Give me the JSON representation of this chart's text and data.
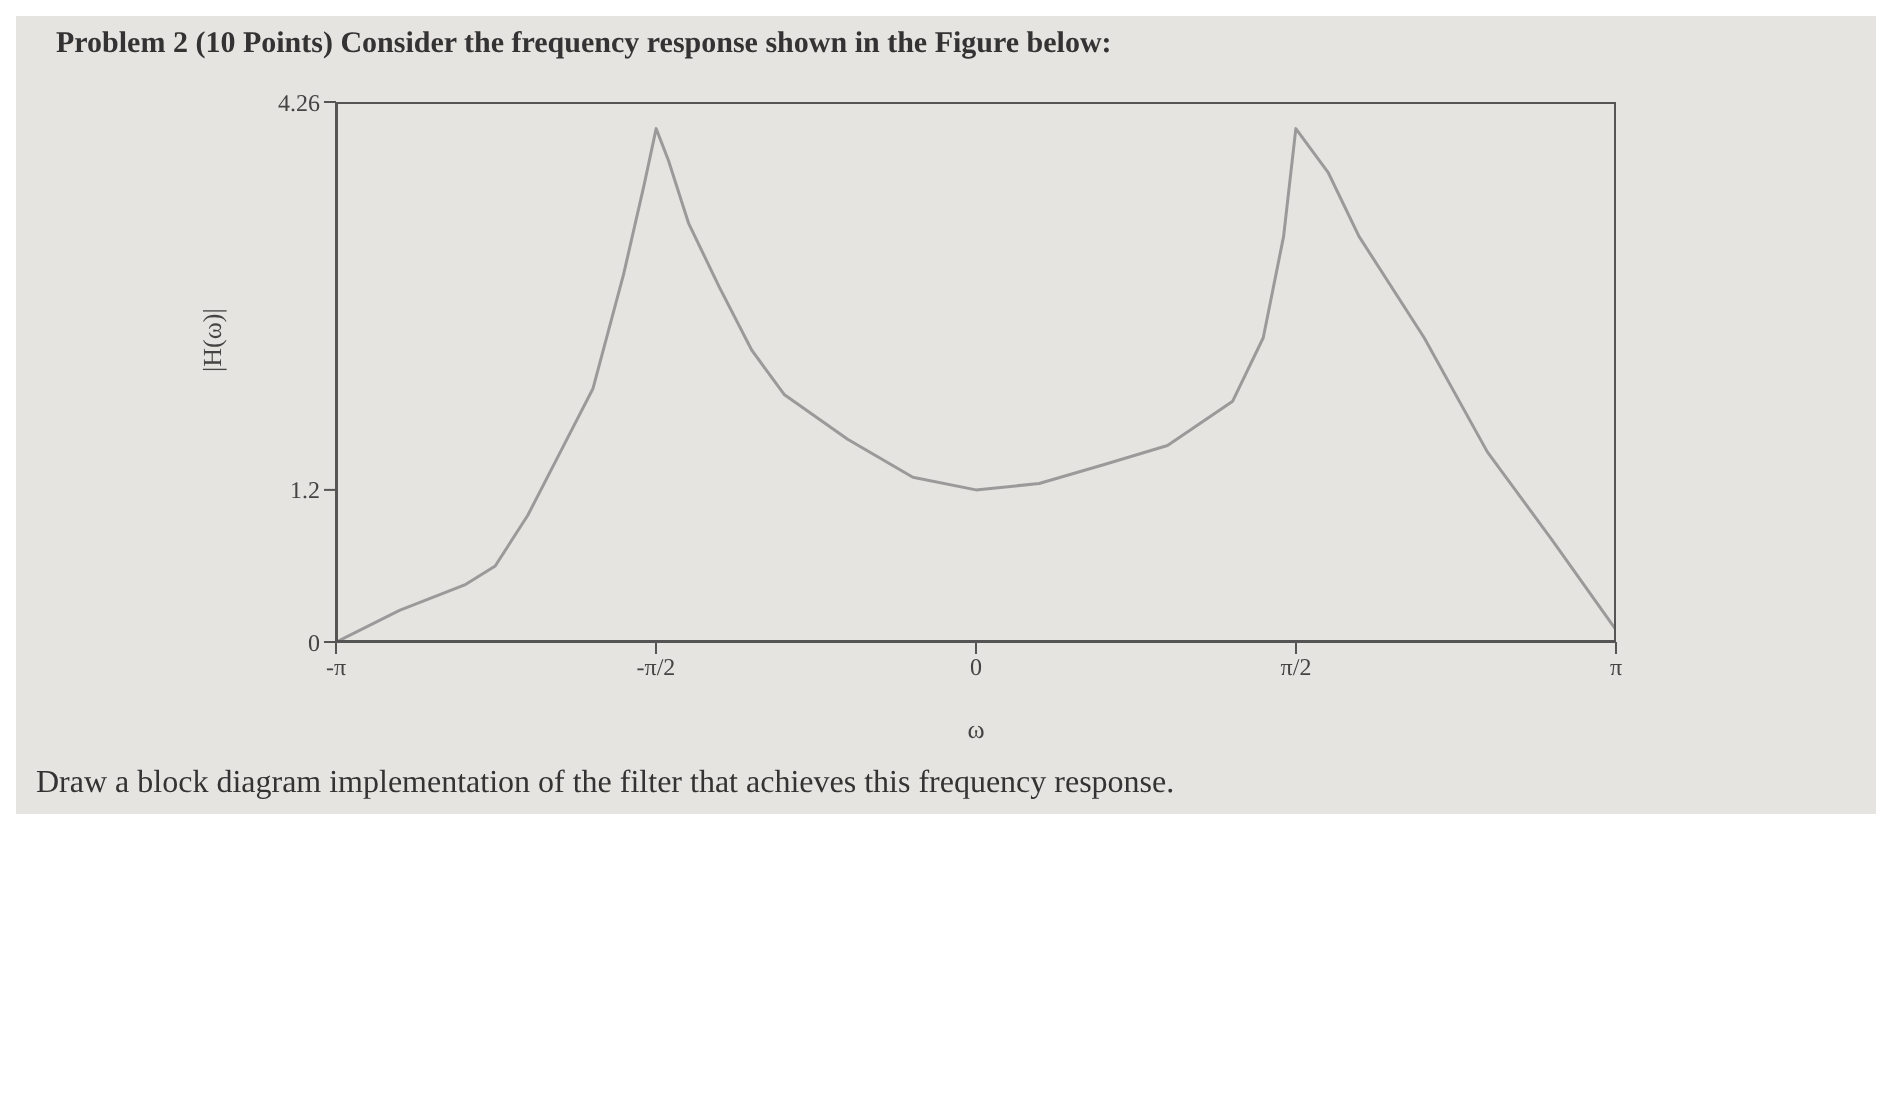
{
  "chart_data": {
    "type": "line",
    "title": "Problem 2 (10 Points) Consider the frequency response shown in the Figure below:",
    "xlabel": "ω",
    "ylabel": "|H(ω)|",
    "annotations": [
      "Draw a block diagram implementation of the filter that achieves this frequency response."
    ],
    "x": [
      -3.14,
      -2.83,
      -2.51,
      -2.36,
      -2.2,
      -2.04,
      -1.88,
      -1.73,
      -1.63,
      -1.57,
      -1.51,
      -1.41,
      -1.26,
      -1.1,
      -0.94,
      -0.63,
      -0.31,
      0,
      0.31,
      0.63,
      0.94,
      1.26,
      1.41,
      1.51,
      1.57,
      1.73,
      1.88,
      2.2,
      2.51,
      2.83,
      3.14
    ],
    "series": [
      {
        "color": "#9a9a9a",
        "values": [
          0,
          0.25,
          0.45,
          0.6,
          1.0,
          1.5,
          2.0,
          2.9,
          3.6,
          4.05,
          3.8,
          3.3,
          2.8,
          2.3,
          1.95,
          1.6,
          1.3,
          1.2,
          1.25,
          1.4,
          1.55,
          1.9,
          2.4,
          3.2,
          4.05,
          3.7,
          3.2,
          2.4,
          1.5,
          0.8,
          0.1
        ]
      }
    ],
    "xlim": [
      -3.1416,
      3.1416
    ],
    "xticks": [
      {
        "value": -3.1416,
        "label": "-π"
      },
      {
        "value": -1.5708,
        "label": "-π/2"
      },
      {
        "value": 0,
        "label": "0"
      },
      {
        "value": 1.5708,
        "label": "π/2"
      },
      {
        "value": 3.1416,
        "label": "π"
      }
    ],
    "ylim": [
      0,
      4.26
    ],
    "yticks": [
      0,
      1.2,
      4.26
    ],
    "grid": false,
    "legend": false,
    "marker": "none",
    "line_style": "solid"
  }
}
